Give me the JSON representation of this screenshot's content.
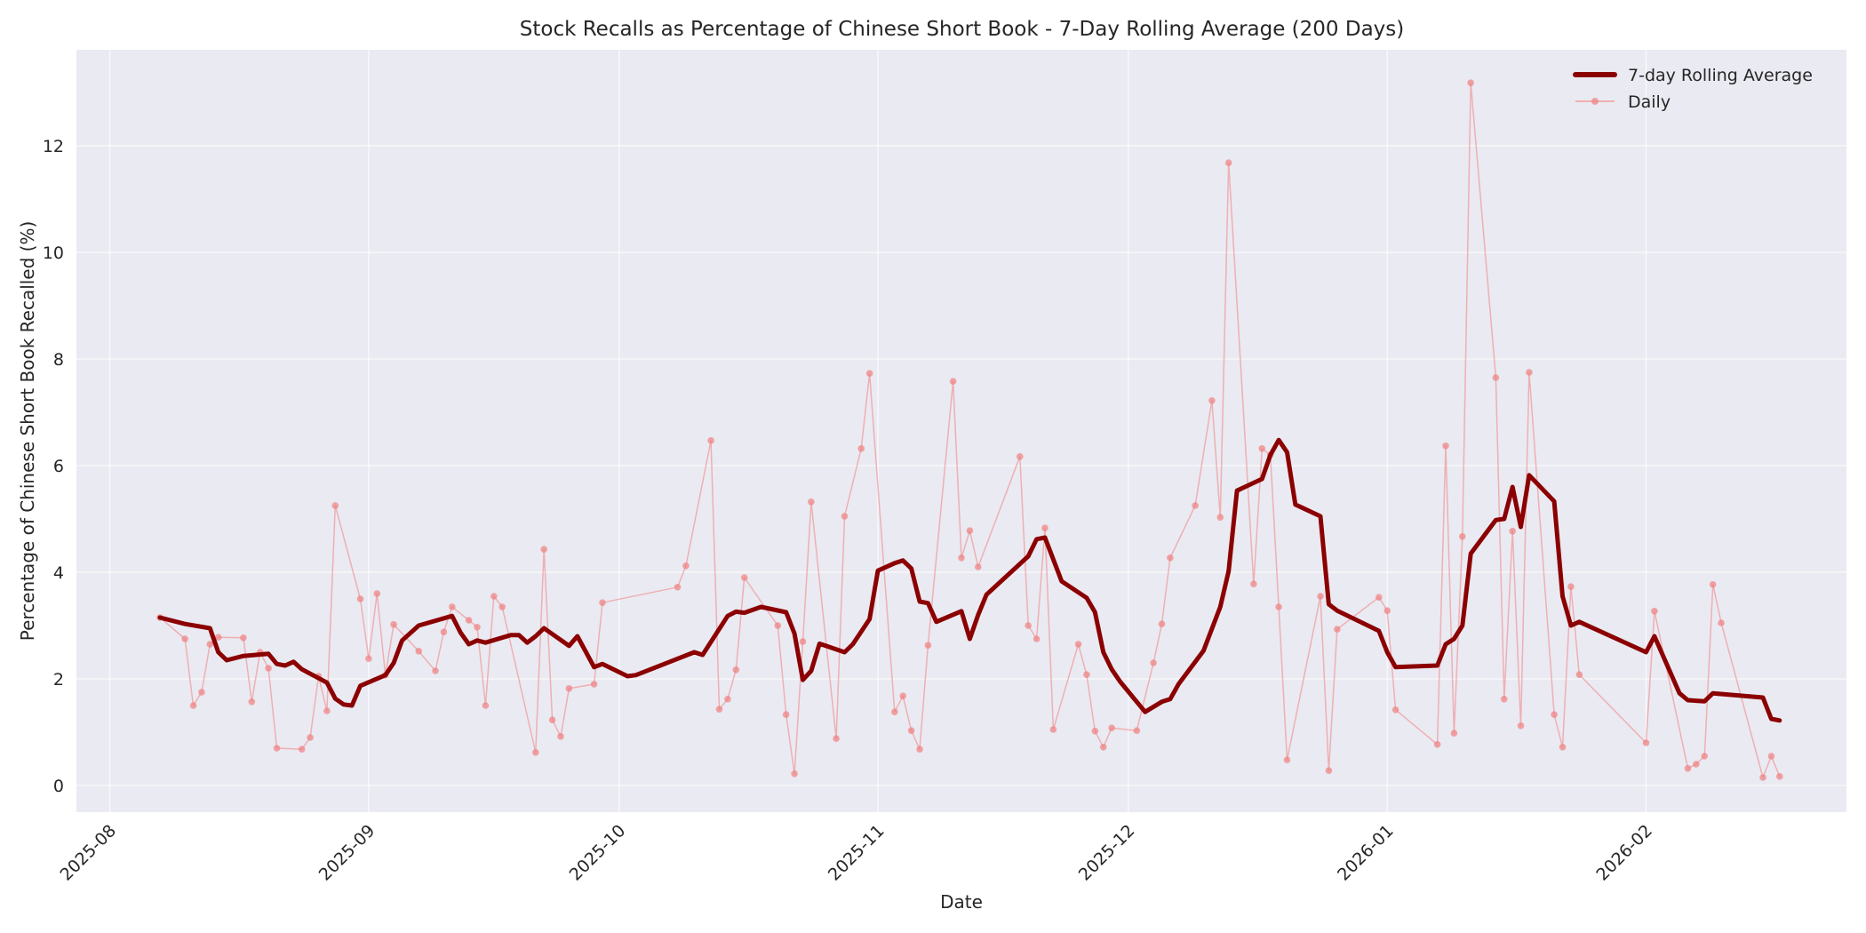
{
  "chart_data": {
    "type": "line",
    "title": "Stock Recalls as Percentage of Chinese Short Book - 7-Day Rolling Average (200 Days)",
    "xlabel": "Date",
    "ylabel": "Percentage of Chinese Short Book Recalled (%)",
    "ylim": [
      -0.5,
      13.8
    ],
    "yticks": [
      0,
      2,
      4,
      6,
      8,
      10,
      12
    ],
    "xlim": [
      "2025-07-28",
      "2026-02-25"
    ],
    "xticks": [
      "2025-08",
      "2025-09",
      "2025-10",
      "2025-11",
      "2025-12",
      "2026-01",
      "2026-02"
    ],
    "grid": true,
    "legend_position": "upper right",
    "background": "#eaeaf2",
    "series": [
      {
        "name": "7-day Rolling Average",
        "color": "#8b0000",
        "linewidth": 5,
        "marker": "none",
        "points": [
          [
            "2025-08-07",
            3.15
          ],
          [
            "2025-08-10",
            3.03
          ],
          [
            "2025-08-13",
            2.95
          ],
          [
            "2025-08-14",
            2.5
          ],
          [
            "2025-08-15",
            2.35
          ],
          [
            "2025-08-17",
            2.43
          ],
          [
            "2025-08-20",
            2.47
          ],
          [
            "2025-08-21",
            2.28
          ],
          [
            "2025-08-22",
            2.25
          ],
          [
            "2025-08-23",
            2.32
          ],
          [
            "2025-08-24",
            2.18
          ],
          [
            "2025-08-27",
            1.93
          ],
          [
            "2025-08-28",
            1.63
          ],
          [
            "2025-08-29",
            1.52
          ],
          [
            "2025-08-30",
            1.5
          ],
          [
            "2025-08-31",
            1.87
          ],
          [
            "2025-09-03",
            2.07
          ],
          [
            "2025-09-04",
            2.3
          ],
          [
            "2025-09-05",
            2.72
          ],
          [
            "2025-09-07",
            3.0
          ],
          [
            "2025-09-11",
            3.18
          ],
          [
            "2025-09-12",
            2.87
          ],
          [
            "2025-09-13",
            2.65
          ],
          [
            "2025-09-14",
            2.72
          ],
          [
            "2025-09-15",
            2.68
          ],
          [
            "2025-09-18",
            2.82
          ],
          [
            "2025-09-19",
            2.82
          ],
          [
            "2025-09-20",
            2.68
          ],
          [
            "2025-09-21",
            2.8
          ],
          [
            "2025-09-22",
            2.95
          ],
          [
            "2025-09-25",
            2.62
          ],
          [
            "2025-09-26",
            2.8
          ],
          [
            "2025-09-28",
            2.22
          ],
          [
            "2025-09-29",
            2.28
          ],
          [
            "2025-10-02",
            2.05
          ],
          [
            "2025-10-03",
            2.07
          ],
          [
            "2025-10-10",
            2.5
          ],
          [
            "2025-10-11",
            2.45
          ],
          [
            "2025-10-14",
            3.18
          ],
          [
            "2025-10-15",
            3.26
          ],
          [
            "2025-10-16",
            3.24
          ],
          [
            "2025-10-18",
            3.35
          ],
          [
            "2025-10-21",
            3.25
          ],
          [
            "2025-10-22",
            2.85
          ],
          [
            "2025-10-23",
            1.98
          ],
          [
            "2025-10-24",
            2.15
          ],
          [
            "2025-10-25",
            2.66
          ],
          [
            "2025-10-28",
            2.5
          ],
          [
            "2025-10-29",
            2.65
          ],
          [
            "2025-10-31",
            3.12
          ],
          [
            "2025-11-01",
            4.03
          ],
          [
            "2025-11-03",
            4.17
          ],
          [
            "2025-11-04",
            4.22
          ],
          [
            "2025-11-05",
            4.07
          ],
          [
            "2025-11-06",
            3.45
          ],
          [
            "2025-11-07",
            3.42
          ],
          [
            "2025-11-08",
            3.07
          ],
          [
            "2025-11-11",
            3.27
          ],
          [
            "2025-11-12",
            2.75
          ],
          [
            "2025-11-13",
            3.2
          ],
          [
            "2025-11-14",
            3.58
          ],
          [
            "2025-11-19",
            4.3
          ],
          [
            "2025-11-20",
            4.62
          ],
          [
            "2025-11-21",
            4.65
          ],
          [
            "2025-11-23",
            3.83
          ],
          [
            "2025-11-26",
            3.52
          ],
          [
            "2025-11-27",
            3.25
          ],
          [
            "2025-11-28",
            2.5
          ],
          [
            "2025-11-29",
            2.18
          ],
          [
            "2025-11-30",
            1.95
          ],
          [
            "2025-12-03",
            1.38
          ],
          [
            "2025-12-05",
            1.57
          ],
          [
            "2025-12-06",
            1.62
          ],
          [
            "2025-12-07",
            1.9
          ],
          [
            "2025-12-10",
            2.53
          ],
          [
            "2025-12-12",
            3.35
          ],
          [
            "2025-12-13",
            4.02
          ],
          [
            "2025-12-14",
            5.53
          ],
          [
            "2025-12-17",
            5.75
          ],
          [
            "2025-12-18",
            6.2
          ],
          [
            "2025-12-19",
            6.48
          ],
          [
            "2025-12-20",
            6.25
          ],
          [
            "2025-12-21",
            5.27
          ],
          [
            "2025-12-24",
            5.05
          ],
          [
            "2025-12-25",
            3.4
          ],
          [
            "2025-12-26",
            3.28
          ],
          [
            "2025-12-31",
            2.9
          ],
          [
            "2026-01-01",
            2.5
          ],
          [
            "2026-01-02",
            2.22
          ],
          [
            "2026-01-07",
            2.25
          ],
          [
            "2026-01-08",
            2.65
          ],
          [
            "2026-01-09",
            2.75
          ],
          [
            "2026-01-10",
            3.0
          ],
          [
            "2026-01-11",
            4.35
          ],
          [
            "2026-01-14",
            4.98
          ],
          [
            "2026-01-15",
            5.0
          ],
          [
            "2026-01-16",
            5.6
          ],
          [
            "2026-01-17",
            4.85
          ],
          [
            "2026-01-18",
            5.82
          ],
          [
            "2026-01-21",
            5.33
          ],
          [
            "2026-01-22",
            3.55
          ],
          [
            "2026-01-23",
            3.0
          ],
          [
            "2026-01-24",
            3.07
          ],
          [
            "2026-02-01",
            2.5
          ],
          [
            "2026-02-02",
            2.8
          ],
          [
            "2026-02-05",
            1.73
          ],
          [
            "2026-02-06",
            1.6
          ],
          [
            "2026-02-08",
            1.58
          ],
          [
            "2026-02-09",
            1.73
          ],
          [
            "2026-02-15",
            1.65
          ],
          [
            "2026-02-16",
            1.25
          ],
          [
            "2026-02-17",
            1.22
          ]
        ]
      },
      {
        "name": "Daily",
        "color": "#f08080",
        "alpha": 0.55,
        "linewidth": 1.5,
        "marker": "o",
        "points": [
          [
            "2025-08-07",
            3.15
          ],
          [
            "2025-08-10",
            2.75
          ],
          [
            "2025-08-11",
            1.5
          ],
          [
            "2025-08-12",
            1.75
          ],
          [
            "2025-08-13",
            2.65
          ],
          [
            "2025-08-14",
            2.78
          ],
          [
            "2025-08-17",
            2.77
          ],
          [
            "2025-08-18",
            1.57
          ],
          [
            "2025-08-19",
            2.5
          ],
          [
            "2025-08-20",
            2.2
          ],
          [
            "2025-08-21",
            0.7
          ],
          [
            "2025-08-24",
            0.68
          ],
          [
            "2025-08-25",
            0.9
          ],
          [
            "2025-08-26",
            2.05
          ],
          [
            "2025-08-27",
            1.4
          ],
          [
            "2025-08-28",
            5.25
          ],
          [
            "2025-08-31",
            3.5
          ],
          [
            "2025-09-01",
            2.38
          ],
          [
            "2025-09-02",
            3.6
          ],
          [
            "2025-09-03",
            2.07
          ],
          [
            "2025-09-04",
            3.02
          ],
          [
            "2025-09-07",
            2.52
          ],
          [
            "2025-09-09",
            2.15
          ],
          [
            "2025-09-10",
            2.88
          ],
          [
            "2025-09-11",
            3.35
          ],
          [
            "2025-09-13",
            3.1
          ],
          [
            "2025-09-14",
            2.97
          ],
          [
            "2025-09-15",
            1.5
          ],
          [
            "2025-09-16",
            3.55
          ],
          [
            "2025-09-17",
            3.35
          ],
          [
            "2025-09-21",
            0.62
          ],
          [
            "2025-09-22",
            4.43
          ],
          [
            "2025-09-23",
            1.23
          ],
          [
            "2025-09-24",
            0.92
          ],
          [
            "2025-09-25",
            1.82
          ],
          [
            "2025-09-28",
            1.9
          ],
          [
            "2025-09-29",
            3.43
          ],
          [
            "2025-10-08",
            3.72
          ],
          [
            "2025-10-09",
            4.12
          ],
          [
            "2025-10-12",
            6.47
          ],
          [
            "2025-10-13",
            1.43
          ],
          [
            "2025-10-14",
            1.62
          ],
          [
            "2025-10-15",
            2.17
          ],
          [
            "2025-10-16",
            3.9
          ],
          [
            "2025-10-20",
            3.0
          ],
          [
            "2025-10-21",
            1.33
          ],
          [
            "2025-10-22",
            0.22
          ],
          [
            "2025-10-23",
            2.7
          ],
          [
            "2025-10-24",
            5.32
          ],
          [
            "2025-10-27",
            0.88
          ],
          [
            "2025-10-28",
            5.05
          ],
          [
            "2025-10-30",
            6.32
          ],
          [
            "2025-10-31",
            7.73
          ],
          [
            "2025-11-03",
            1.38
          ],
          [
            "2025-11-04",
            1.68
          ],
          [
            "2025-11-05",
            1.03
          ],
          [
            "2025-11-06",
            0.68
          ],
          [
            "2025-11-07",
            2.63
          ],
          [
            "2025-11-10",
            7.58
          ],
          [
            "2025-11-11",
            4.27
          ],
          [
            "2025-11-12",
            4.78
          ],
          [
            "2025-11-13",
            4.1
          ],
          [
            "2025-11-18",
            6.17
          ],
          [
            "2025-11-19",
            3.0
          ],
          [
            "2025-11-20",
            2.75
          ],
          [
            "2025-11-21",
            4.83
          ],
          [
            "2025-11-22",
            1.05
          ],
          [
            "2025-11-25",
            2.65
          ],
          [
            "2025-11-26",
            2.08
          ],
          [
            "2025-11-27",
            1.02
          ],
          [
            "2025-11-28",
            0.72
          ],
          [
            "2025-11-29",
            1.08
          ],
          [
            "2025-12-02",
            1.03
          ],
          [
            "2025-12-04",
            2.3
          ],
          [
            "2025-12-05",
            3.03
          ],
          [
            "2025-12-06",
            4.27
          ],
          [
            "2025-12-09",
            5.25
          ],
          [
            "2025-12-11",
            7.22
          ],
          [
            "2025-12-12",
            5.03
          ],
          [
            "2025-12-13",
            11.68
          ],
          [
            "2025-12-16",
            3.78
          ],
          [
            "2025-12-17",
            6.32
          ],
          [
            "2025-12-18",
            6.2
          ],
          [
            "2025-12-19",
            3.35
          ],
          [
            "2025-12-20",
            0.48
          ],
          [
            "2025-12-24",
            3.55
          ],
          [
            "2025-12-25",
            0.28
          ],
          [
            "2025-12-26",
            2.93
          ],
          [
            "2025-12-31",
            3.53
          ],
          [
            "2026-01-01",
            3.28
          ],
          [
            "2026-01-02",
            1.42
          ],
          [
            "2026-01-07",
            0.77
          ],
          [
            "2026-01-08",
            6.37
          ],
          [
            "2026-01-09",
            0.98
          ],
          [
            "2026-01-10",
            4.67
          ],
          [
            "2026-01-11",
            13.18
          ],
          [
            "2026-01-14",
            7.65
          ],
          [
            "2026-01-15",
            1.62
          ],
          [
            "2026-01-16",
            4.77
          ],
          [
            "2026-01-17",
            1.12
          ],
          [
            "2026-01-18",
            7.75
          ],
          [
            "2026-01-21",
            1.33
          ],
          [
            "2026-01-22",
            0.72
          ],
          [
            "2026-01-23",
            3.73
          ],
          [
            "2026-01-24",
            2.08
          ],
          [
            "2026-02-01",
            0.8
          ],
          [
            "2026-02-02",
            3.27
          ],
          [
            "2026-02-06",
            0.32
          ],
          [
            "2026-02-07",
            0.4
          ],
          [
            "2026-02-08",
            0.55
          ],
          [
            "2026-02-09",
            3.77
          ],
          [
            "2026-02-10",
            3.05
          ],
          [
            "2026-02-15",
            0.15
          ],
          [
            "2026-02-16",
            0.55
          ],
          [
            "2026-02-17",
            0.17
          ]
        ]
      }
    ]
  },
  "legend": {
    "items": [
      {
        "label": "7-day Rolling Average",
        "style": "thick-line"
      },
      {
        "label": "Daily",
        "style": "thin-line-marker"
      }
    ]
  }
}
